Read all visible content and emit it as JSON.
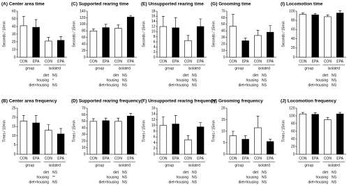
{
  "chart_data": [
    {
      "type": "bar",
      "title": "(A) Center area time",
      "y_label": "Seconds / 10min",
      "categories": [
        "CON",
        "EPA",
        "CON",
        "EPA"
      ],
      "groups": [
        "group",
        "isolated"
      ],
      "values": [
        41,
        39,
        21,
        22
      ],
      "errors": [
        12,
        10,
        5,
        5
      ],
      "colors": [
        "#ffffff",
        "#000000",
        "#ffffff",
        "#000000"
      ],
      "ylim": [
        0,
        60
      ],
      "yticks": [
        0,
        10,
        20,
        30,
        40,
        50,
        60
      ],
      "stats": {
        "labels": [
          "diet",
          "housing",
          "diet×housing"
        ],
        "values": [
          "NS",
          "*",
          "NS"
        ]
      }
    },
    {
      "type": "bar",
      "title": "(C) Supported rearing time",
      "y_label": "Seconds / 15min",
      "categories": [
        "CON",
        "EPA",
        "CON",
        "EPA"
      ],
      "groups": [
        "group",
        "isolated"
      ],
      "values": [
        80,
        90,
        88,
        122
      ],
      "errors": [
        6,
        10,
        10,
        5
      ],
      "colors": [
        "#ffffff",
        "#000000",
        "#ffffff",
        "#000000"
      ],
      "ylim": [
        0,
        140
      ],
      "yticks": [
        0,
        20,
        40,
        60,
        80,
        100,
        120,
        140
      ],
      "stats": {
        "labels": [
          "diet",
          "housing",
          "diet×housing"
        ],
        "values": [
          "NS",
          "NS",
          "NS"
        ]
      }
    },
    {
      "type": "bar",
      "title": "(E) Unsupported rearing time",
      "y_label": "Seconds / 15min",
      "categories": [
        "CON",
        "EPA",
        "CON",
        "EPA"
      ],
      "groups": [
        "group",
        "isolated"
      ],
      "values": [
        12,
        11.5,
        6.5,
        12
      ],
      "errors": [
        4,
        4,
        2,
        3
      ],
      "colors": [
        "#ffffff",
        "#000000",
        "#ffffff",
        "#000000"
      ],
      "ylim": [
        0,
        18
      ],
      "yticks": [
        0,
        2,
        4,
        6,
        8,
        10,
        12,
        14,
        16,
        18
      ],
      "stats": {
        "labels": [
          "diet",
          "housing",
          "diet×housing"
        ],
        "values": [
          "NS",
          "NS",
          "NS"
        ]
      }
    },
    {
      "type": "bar",
      "title": "(G) Grooming time",
      "y_label": "Seconds / 15min",
      "categories": [
        "CON",
        "EPA",
        "CON",
        "EPA"
      ],
      "groups": [
        "group",
        "isolated"
      ],
      "values": [
        47,
        25,
        33,
        38
      ],
      "errors": [
        18,
        4,
        8,
        10
      ],
      "colors": [
        "#ffffff",
        "#000000",
        "#ffffff",
        "#000000"
      ],
      "ylim": [
        0,
        70
      ],
      "yticks": [
        0,
        10,
        20,
        30,
        40,
        50,
        60,
        70
      ],
      "stats": {
        "labels": [
          "diet",
          "housing",
          "diet×housing"
        ],
        "values": [
          "NS",
          "NS",
          "NS"
        ]
      }
    },
    {
      "type": "bar",
      "title": "(I) Locomotion time",
      "y_label": "Seconds / 15min",
      "categories": [
        "CON",
        "EPA",
        "CON",
        "EPA"
      ],
      "groups": [
        "group",
        "isolated"
      ],
      "values": [
        93,
        92,
        88,
        96
      ],
      "errors": [
        3,
        3,
        4,
        5
      ],
      "colors": [
        "#ffffff",
        "#000000",
        "#ffffff",
        "#000000"
      ],
      "ylim": [
        0,
        100
      ],
      "yticks": [
        0,
        20,
        40,
        60,
        80,
        100
      ],
      "stats": {
        "labels": [
          "diet",
          "housing",
          "diet×housing"
        ],
        "values": [
          "NS",
          "NS",
          "NS"
        ]
      }
    },
    {
      "type": "bar",
      "title": "(B) Center area frequency",
      "y_label": "Times / 10min",
      "categories": [
        "CON",
        "EPA",
        "CON",
        "EPA"
      ],
      "groups": [
        "group",
        "isolated"
      ],
      "values": [
        18,
        17,
        13,
        11
      ],
      "errors": [
        3,
        4,
        3,
        3
      ],
      "colors": [
        "#ffffff",
        "#000000",
        "#ffffff",
        "#000000"
      ],
      "ylim": [
        0,
        25
      ],
      "yticks": [
        0,
        5,
        10,
        15,
        20,
        25
      ],
      "stats": {
        "labels": [
          "diet",
          "housing",
          "diet×housing"
        ],
        "values": [
          "NS",
          "**",
          "NS"
        ]
      }
    },
    {
      "type": "bar",
      "title": "(D) Supported rearing frequency",
      "y_label": "Times / 15min",
      "categories": [
        "CON",
        "EPA",
        "CON",
        "EPA"
      ],
      "groups": [
        "group",
        "isolated"
      ],
      "values": [
        50,
        51,
        50,
        58
      ],
      "errors": [
        4,
        4,
        5,
        4
      ],
      "colors": [
        "#ffffff",
        "#000000",
        "#ffffff",
        "#000000"
      ],
      "ylim": [
        0,
        70
      ],
      "yticks": [
        0,
        10,
        20,
        30,
        40,
        50,
        60,
        70
      ],
      "stats": {
        "labels": [
          "diet",
          "housing",
          "diet×housing"
        ],
        "values": [
          "NS",
          "NS",
          "NS"
        ]
      }
    },
    {
      "type": "bar",
      "title": "(F) Unsupported rearing frequency",
      "y_label": "Times / 15min",
      "categories": [
        "CON",
        "EPA",
        "CON",
        "EPA"
      ],
      "groups": [
        "group",
        "isolated"
      ],
      "values": [
        10,
        10.5,
        5,
        9.5
      ],
      "errors": [
        3,
        3,
        1.5,
        1.5
      ],
      "colors": [
        "#ffffff",
        "#000000",
        "#ffffff",
        "#000000"
      ],
      "ylim": [
        0,
        16
      ],
      "yticks": [
        0,
        2,
        4,
        6,
        8,
        10,
        12,
        14,
        16
      ],
      "stats": {
        "labels": [
          "diet",
          "housing",
          "diet×housing"
        ],
        "values": [
          "NS",
          "NS",
          "NS"
        ]
      }
    },
    {
      "type": "bar",
      "title": "(H) Grooming frequency",
      "y_label": "Times / 15min",
      "categories": [
        "CON",
        "EPA",
        "CON",
        "EPA"
      ],
      "groups": [
        "group",
        "isolated"
      ],
      "values": [
        8,
        6.5,
        11.5,
        5.5
      ],
      "errors": [
        2,
        1.5,
        5,
        1
      ],
      "colors": [
        "#ffffff",
        "#000000",
        "#ffffff",
        "#000000"
      ],
      "ylim": [
        0,
        20
      ],
      "yticks": [
        0,
        5,
        10,
        15,
        20
      ],
      "stats": {
        "labels": [
          "diet",
          "housing",
          "diet×housing"
        ],
        "values": [
          "NS",
          "NS",
          "NS"
        ]
      }
    },
    {
      "type": "bar",
      "title": "(J) Locomotion frequency",
      "y_label": "Times / 15min",
      "categories": [
        "CON",
        "EPA",
        "CON",
        "EPA"
      ],
      "groups": [
        "group",
        "isolated"
      ],
      "values": [
        105,
        104,
        90,
        105
      ],
      "errors": [
        4,
        4,
        6,
        4
      ],
      "colors": [
        "#ffffff",
        "#000000",
        "#ffffff",
        "#000000"
      ],
      "ylim": [
        0,
        120
      ],
      "yticks": [
        0,
        20,
        40,
        60,
        80,
        100,
        120
      ],
      "stats": {
        "labels": [
          "diet",
          "housing",
          "diet×housing"
        ],
        "values": [
          "NS",
          "NS",
          "NS"
        ]
      }
    }
  ]
}
